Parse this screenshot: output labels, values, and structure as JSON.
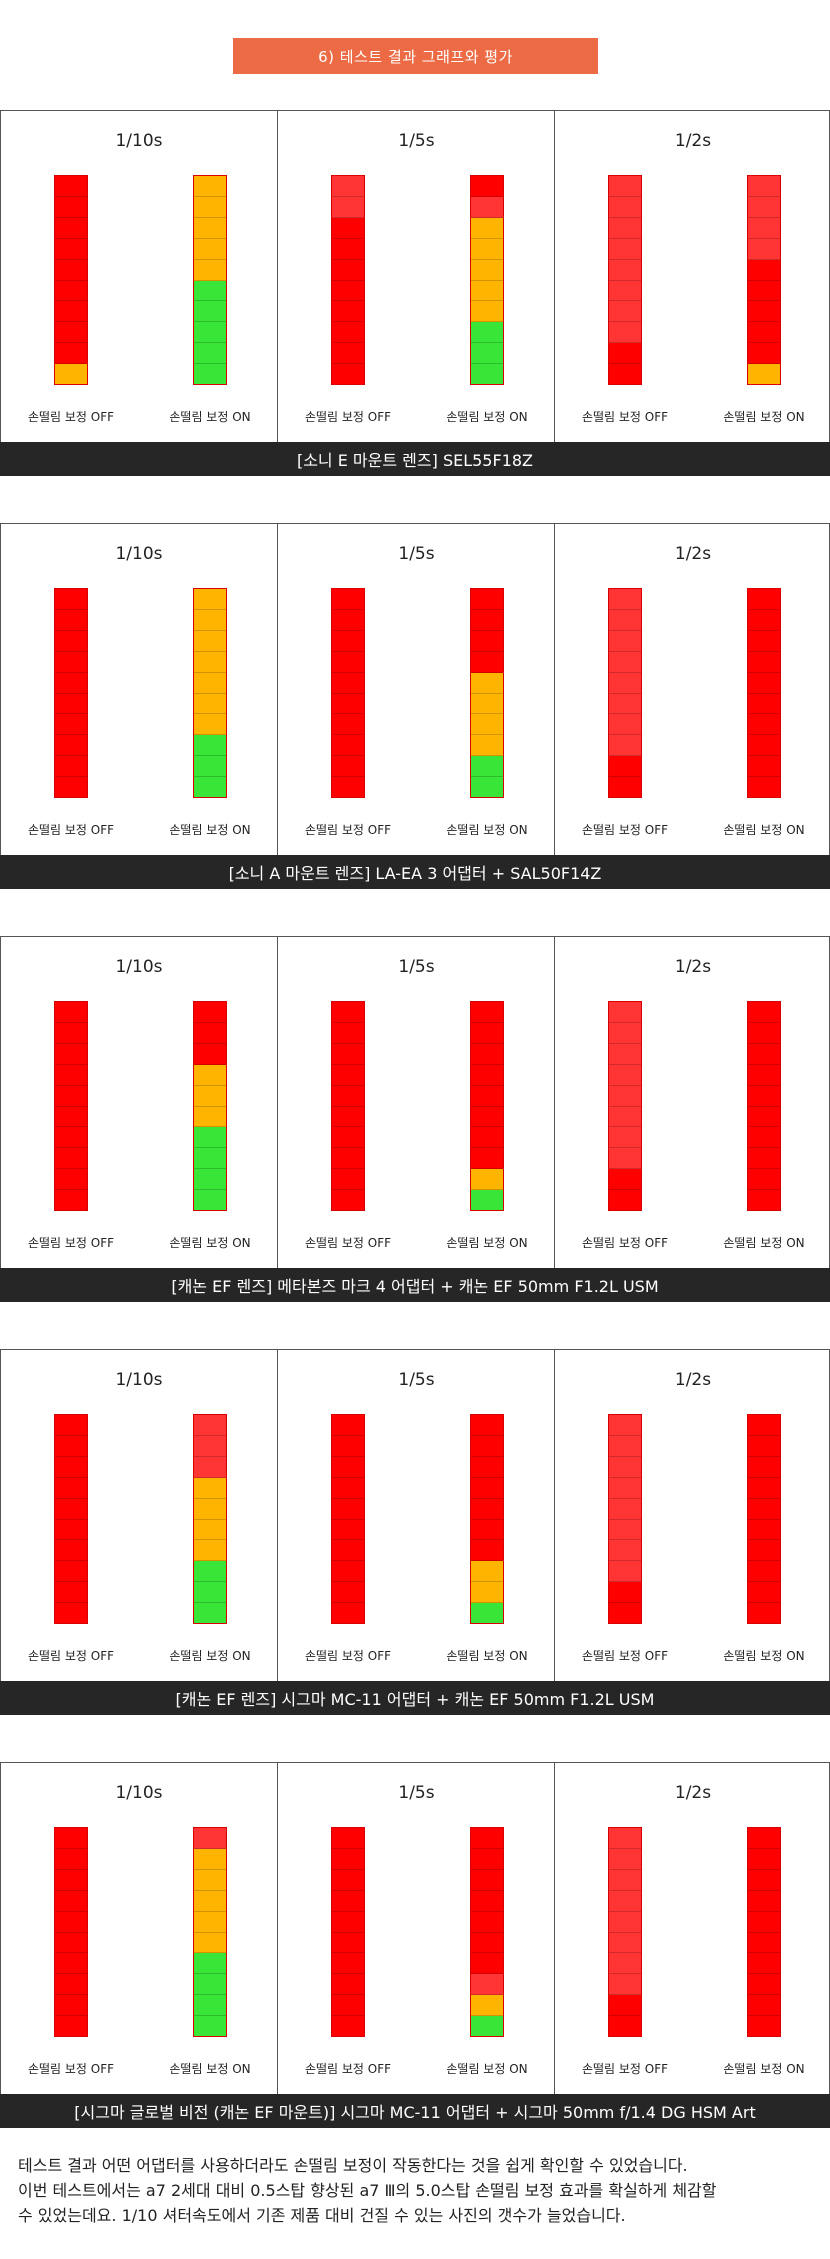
{
  "header": {
    "title": "6) 테스트 결과 그래프와 평가"
  },
  "colors": {
    "red": "#ff0000",
    "light_red": "#ff3434",
    "orange": "#ffb400",
    "green": "#39e637",
    "caption_bg": "#262626",
    "banner": "#ec6a44"
  },
  "labels": {
    "off": "손떨림 보정 OFF",
    "on": "손떨림 보정 ON"
  },
  "sections": [
    {
      "caption": "[소니 E 마운트 렌즈] SEL55F18Z",
      "panels": [
        {
          "speed": "1/10s",
          "off": [
            "R",
            "R",
            "R",
            "R",
            "R",
            "R",
            "R",
            "R",
            "R",
            "O"
          ],
          "on": [
            "O",
            "O",
            "O",
            "O",
            "O",
            "G",
            "G",
            "G",
            "G",
            "G"
          ]
        },
        {
          "speed": "1/5s",
          "off": [
            "L",
            "L",
            "R",
            "R",
            "R",
            "R",
            "R",
            "R",
            "R",
            "R"
          ],
          "on": [
            "R",
            "L",
            "O",
            "O",
            "O",
            "O",
            "O",
            "G",
            "G",
            "G"
          ]
        },
        {
          "speed": "1/2s",
          "off": [
            "L",
            "L",
            "L",
            "L",
            "L",
            "L",
            "L",
            "L",
            "R",
            "R"
          ],
          "on": [
            "L",
            "L",
            "L",
            "L",
            "R",
            "R",
            "R",
            "R",
            "R",
            "O"
          ]
        }
      ]
    },
    {
      "caption": "[소니 A 마운트 렌즈] LA-EA 3 어댑터 + SAL50F14Z",
      "panels": [
        {
          "speed": "1/10s",
          "off": [
            "R",
            "R",
            "R",
            "R",
            "R",
            "R",
            "R",
            "R",
            "R",
            "R"
          ],
          "on": [
            "O",
            "O",
            "O",
            "O",
            "O",
            "O",
            "O",
            "G",
            "G",
            "G"
          ]
        },
        {
          "speed": "1/5s",
          "off": [
            "R",
            "R",
            "R",
            "R",
            "R",
            "R",
            "R",
            "R",
            "R",
            "R"
          ],
          "on": [
            "R",
            "R",
            "R",
            "R",
            "O",
            "O",
            "O",
            "O",
            "G",
            "G"
          ]
        },
        {
          "speed": "1/2s",
          "off": [
            "L",
            "L",
            "L",
            "L",
            "L",
            "L",
            "L",
            "L",
            "R",
            "R"
          ],
          "on": [
            "R",
            "R",
            "R",
            "R",
            "R",
            "R",
            "R",
            "R",
            "R",
            "R"
          ]
        }
      ]
    },
    {
      "caption": "[캐논 EF 렌즈] 메타본즈 마크 4 어댑터 + 캐논 EF 50mm F1.2L USM",
      "panels": [
        {
          "speed": "1/10s",
          "off": [
            "R",
            "R",
            "R",
            "R",
            "R",
            "R",
            "R",
            "R",
            "R",
            "R"
          ],
          "on": [
            "R",
            "R",
            "R",
            "O",
            "O",
            "O",
            "G",
            "G",
            "G",
            "G"
          ]
        },
        {
          "speed": "1/5s",
          "off": [
            "R",
            "R",
            "R",
            "R",
            "R",
            "R",
            "R",
            "R",
            "R",
            "R"
          ],
          "on": [
            "R",
            "R",
            "R",
            "R",
            "R",
            "R",
            "R",
            "R",
            "O",
            "G"
          ]
        },
        {
          "speed": "1/2s",
          "off": [
            "L",
            "L",
            "L",
            "L",
            "L",
            "L",
            "L",
            "L",
            "R",
            "R"
          ],
          "on": [
            "R",
            "R",
            "R",
            "R",
            "R",
            "R",
            "R",
            "R",
            "R",
            "R"
          ]
        }
      ]
    },
    {
      "caption": "[캐논 EF 렌즈] 시그마 MC-11 어댑터 + 캐논 EF 50mm F1.2L USM",
      "panels": [
        {
          "speed": "1/10s",
          "off": [
            "R",
            "R",
            "R",
            "R",
            "R",
            "R",
            "R",
            "R",
            "R",
            "R"
          ],
          "on": [
            "L",
            "L",
            "L",
            "O",
            "O",
            "O",
            "O",
            "G",
            "G",
            "G"
          ]
        },
        {
          "speed": "1/5s",
          "off": [
            "R",
            "R",
            "R",
            "R",
            "R",
            "R",
            "R",
            "R",
            "R",
            "R"
          ],
          "on": [
            "R",
            "R",
            "R",
            "R",
            "R",
            "R",
            "R",
            "O",
            "O",
            "G"
          ]
        },
        {
          "speed": "1/2s",
          "off": [
            "L",
            "L",
            "L",
            "L",
            "L",
            "L",
            "L",
            "L",
            "R",
            "R"
          ],
          "on": [
            "R",
            "R",
            "R",
            "R",
            "R",
            "R",
            "R",
            "R",
            "R",
            "R"
          ]
        }
      ]
    },
    {
      "caption": "[시그마 글로벌 비전 (캐논 EF 마운트)] 시그마 MC-11 어댑터 + 시그마 50mm f/1.4 DG HSM Art",
      "panels": [
        {
          "speed": "1/10s",
          "off": [
            "R",
            "R",
            "R",
            "R",
            "R",
            "R",
            "R",
            "R",
            "R",
            "R"
          ],
          "on": [
            "L",
            "O",
            "O",
            "O",
            "O",
            "O",
            "G",
            "G",
            "G",
            "G"
          ]
        },
        {
          "speed": "1/5s",
          "off": [
            "R",
            "R",
            "R",
            "R",
            "R",
            "R",
            "R",
            "R",
            "R",
            "R"
          ],
          "on": [
            "R",
            "R",
            "R",
            "R",
            "R",
            "R",
            "R",
            "L",
            "O",
            "G"
          ]
        },
        {
          "speed": "1/2s",
          "off": [
            "L",
            "L",
            "L",
            "L",
            "L",
            "L",
            "L",
            "L",
            "R",
            "R"
          ],
          "on": [
            "R",
            "R",
            "R",
            "R",
            "R",
            "R",
            "R",
            "R",
            "R",
            "R"
          ]
        }
      ]
    }
  ],
  "footer": {
    "line1": "테스트 결과 어떤 어댑터를 사용하더라도 손떨림 보정이 작동한다는 것을 쉽게 확인할 수 있었습니다.",
    "line2": "이번 테스트에서는 a7 2세대 대비 0.5스탑 향상된 a7 Ⅲ의 5.0스탑 손떨림 보정 효과를 확실하게 체감할",
    "line3": "수 있었는데요. 1/10 셔터속도에서 기존 제품 대비 건질 수 있는 사진의 갯수가 늘었습니다."
  }
}
